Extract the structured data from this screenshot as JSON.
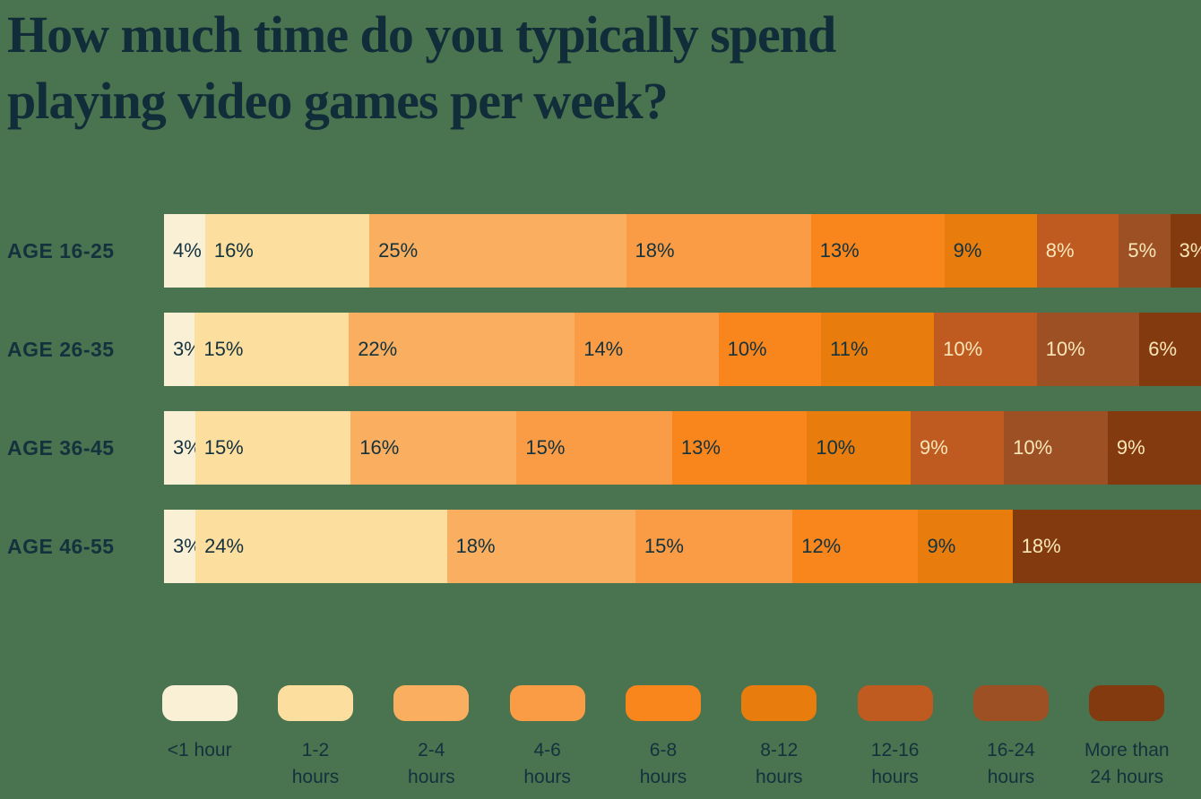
{
  "title": {
    "line1": "How much time do you typically spend",
    "line2": "playing video games per week?"
  },
  "colors": {
    "background": "#4A734F",
    "title_text": "#112D3A",
    "dark_label": "#14323E",
    "light_label": "#FAE7B9"
  },
  "chart_data": {
    "type": "bar",
    "variant": "horizontal-stacked-100pct",
    "title": "How much time do you typically spend playing video games per week?",
    "unit": "%",
    "legend_position": "bottom",
    "grid": false,
    "categories": [
      "<1 hour",
      "1-2 hours",
      "2-4 hours",
      "4-6 hours",
      "6-8 hours",
      "8-12 hours",
      "12-16 hours",
      "16-24 hours",
      "More than 24 hours"
    ],
    "category_colors": [
      "#FAF0D6",
      "#FCDE9E",
      "#FAAF60",
      "#FA9C45",
      "#F8861C",
      "#E87D0E",
      "#BF5A20",
      "#9C5024",
      "#833A0E"
    ],
    "category_label_style": [
      "dark",
      "dark",
      "dark",
      "dark",
      "dark",
      "dark",
      "light",
      "light",
      "light"
    ],
    "series": [
      {
        "name": "AGE 16-25",
        "values": [
          4,
          16,
          25,
          18,
          13,
          9,
          8,
          5,
          3
        ]
      },
      {
        "name": "AGE 26-35",
        "values": [
          3,
          15,
          22,
          14,
          10,
          11,
          10,
          10,
          6
        ]
      },
      {
        "name": "AGE 36-45",
        "values": [
          3,
          15,
          16,
          15,
          13,
          10,
          9,
          10,
          9
        ]
      },
      {
        "name": "AGE 46-55",
        "values": [
          3,
          24,
          18,
          15,
          12,
          9,
          0,
          0,
          18
        ]
      }
    ]
  },
  "legend": [
    {
      "line1": "<1 hour",
      "line2": ""
    },
    {
      "line1": "1-2",
      "line2": "hours"
    },
    {
      "line1": "2-4",
      "line2": "hours"
    },
    {
      "line1": "4-6",
      "line2": "hours"
    },
    {
      "line1": "6-8",
      "line2": "hours"
    },
    {
      "line1": "8-12",
      "line2": "hours"
    },
    {
      "line1": "12-16",
      "line2": "hours"
    },
    {
      "line1": "16-24",
      "line2": "hours"
    },
    {
      "line1": "More than",
      "line2": "24 hours"
    }
  ]
}
